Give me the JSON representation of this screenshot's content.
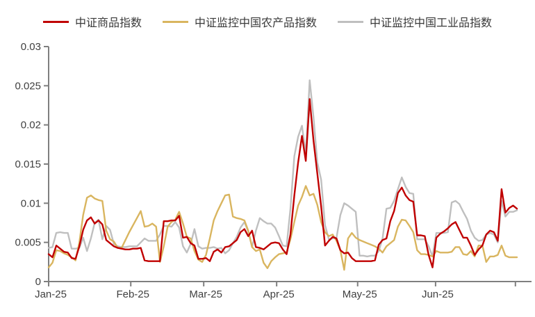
{
  "legend": [
    {
      "label": "中证商品指数",
      "color": "#C00000"
    },
    {
      "label": "中证监控中国农产品指数",
      "color": "#D9B55F"
    },
    {
      "label": "中证监控中国工业品指数",
      "color": "#BFBFBF"
    }
  ],
  "colors": {
    "axis": "#7F7F7F",
    "tick_text": "#404040",
    "background": "#FFFFFF"
  },
  "chart_data": {
    "type": "line",
    "title": "",
    "xlabel": "",
    "ylabel": "",
    "ylim": [
      0,
      0.03
    ],
    "grid": false,
    "legend_position": "top",
    "y_ticks": [
      0,
      0.005,
      0.01,
      0.015,
      0.02,
      0.025,
      0.03
    ],
    "y_tick_labels": [
      "0",
      "0.005",
      "0.01",
      "0.015",
      "0.02",
      "0.025",
      "0.03"
    ],
    "x_ticks": [
      {
        "day": 0,
        "label": "Jan-25"
      },
      {
        "day": 21.4,
        "label": "Feb-25"
      },
      {
        "day": 40.4,
        "label": "Mar-25"
      },
      {
        "day": 59.4,
        "label": "Apr-25"
      },
      {
        "day": 80.5,
        "label": "May-25"
      },
      {
        "day": 100.8,
        "label": "Jun-25"
      },
      {
        "day": 121.6,
        "label": ""
      }
    ],
    "series": [
      {
        "name": "中证商品指数",
        "color": "#C00000",
        "values": [
          0.0035,
          0.0031,
          0.0046,
          0.0042,
          0.0038,
          0.0037,
          0.003,
          0.0029,
          0.0045,
          0.0066,
          0.0078,
          0.0082,
          0.0074,
          0.0078,
          0.0073,
          0.0053,
          0.0049,
          0.0045,
          0.0043,
          0.0042,
          0.0041,
          0.0041,
          0.0042,
          0.0042,
          0.0043,
          0.0027,
          0.0026,
          0.0026,
          0.0026,
          0.0026,
          0.0077,
          0.0077,
          0.0078,
          0.0078,
          0.0084,
          0.0056,
          0.0057,
          0.0049,
          0.0046,
          0.0029,
          0.0029,
          0.003,
          0.0026,
          0.0038,
          0.0041,
          0.0037,
          0.0044,
          0.0045,
          0.0049,
          0.0053,
          0.0063,
          0.0067,
          0.0058,
          0.0065,
          0.0044,
          0.0043,
          0.0041,
          0.0045,
          0.0049,
          0.005,
          0.0049,
          0.0041,
          0.0035,
          0.006,
          0.011,
          0.0152,
          0.0186,
          0.0154,
          0.0233,
          0.018,
          0.0138,
          0.0096,
          0.0046,
          0.0052,
          0.0057,
          0.0055,
          0.004,
          0.0036,
          0.0037,
          0.003,
          0.0026,
          0.0026,
          0.0026,
          0.0026,
          0.0026,
          0.0027,
          0.0047,
          0.0053,
          0.0055,
          0.0077,
          0.009,
          0.0113,
          0.012,
          0.011,
          0.0104,
          0.0102,
          0.0059,
          0.0059,
          0.0058,
          0.0034,
          0.0018,
          0.0056,
          0.0061,
          0.0064,
          0.0068,
          0.0073,
          0.0076,
          0.0066,
          0.0056,
          0.0056,
          0.0046,
          0.0034,
          0.0041,
          0.0046,
          0.006,
          0.0065,
          0.0063,
          0.0052,
          0.0118,
          0.0088,
          0.0094,
          0.0097,
          0.0093
        ]
      },
      {
        "name": "中证监控中国农产品指数",
        "color": "#D9B55F",
        "values": [
          0.0018,
          0.0024,
          0.004,
          0.0039,
          0.0036,
          0.0034,
          0.0031,
          0.0027,
          0.005,
          0.0085,
          0.0107,
          0.011,
          0.0106,
          0.0104,
          0.0103,
          0.0065,
          0.0054,
          0.0051,
          0.0043,
          0.0043,
          0.0053,
          0.0063,
          0.0072,
          0.0081,
          0.009,
          0.007,
          0.0071,
          0.0074,
          0.007,
          0.0025,
          0.0045,
          0.007,
          0.0076,
          0.0079,
          0.0089,
          0.0074,
          0.0057,
          0.0055,
          0.0039,
          0.0028,
          0.0025,
          0.0034,
          0.0055,
          0.0078,
          0.009,
          0.01,
          0.011,
          0.0111,
          0.0083,
          0.0081,
          0.008,
          0.0078,
          0.0065,
          0.0044,
          0.0039,
          0.0041,
          0.0024,
          0.0017,
          0.0026,
          0.0031,
          0.0035,
          0.0036,
          0.0037,
          0.0054,
          0.0076,
          0.0097,
          0.0108,
          0.0122,
          0.011,
          0.0112,
          0.0098,
          0.0076,
          0.0063,
          0.0058,
          0.006,
          0.0052,
          0.004,
          0.0015,
          0.0055,
          0.0062,
          0.0056,
          0.0053,
          0.0051,
          0.0049,
          0.0047,
          0.0045,
          0.0042,
          0.0037,
          0.0045,
          0.0049,
          0.0053,
          0.007,
          0.0079,
          0.0078,
          0.0071,
          0.0063,
          0.004,
          0.0035,
          0.0035,
          0.0034,
          0.0032,
          0.0039,
          0.0037,
          0.0037,
          0.0037,
          0.0038,
          0.0044,
          0.0044,
          0.0035,
          0.0034,
          0.0039,
          0.0032,
          0.0046,
          0.0046,
          0.0025,
          0.0032,
          0.0032,
          0.0034,
          0.0046,
          0.0033,
          0.0031,
          0.0031,
          0.0031
        ]
      },
      {
        "name": "中证监控中国工业品指数",
        "color": "#BFBFBF",
        "values": [
          0.0043,
          0.0044,
          0.0062,
          0.0063,
          0.0062,
          0.0062,
          0.0042,
          0.0042,
          0.0043,
          0.0056,
          0.0039,
          0.0055,
          0.0075,
          0.0079,
          0.0054,
          0.0071,
          0.0066,
          0.0048,
          0.0045,
          0.0044,
          0.0044,
          0.0045,
          0.0045,
          0.0045,
          0.005,
          0.0055,
          0.0052,
          0.0052,
          0.0052,
          0.006,
          0.0071,
          0.0071,
          0.007,
          0.0076,
          0.0069,
          0.0045,
          0.0037,
          0.0048,
          0.0067,
          0.0045,
          0.0042,
          0.0043,
          0.0043,
          0.0044,
          0.0042,
          0.0043,
          0.0036,
          0.004,
          0.0049,
          0.0057,
          0.0069,
          0.0076,
          0.0064,
          0.0044,
          0.0065,
          0.0081,
          0.0077,
          0.0074,
          0.0074,
          0.0069,
          0.0058,
          0.0046,
          0.0045,
          0.0093,
          0.016,
          0.0185,
          0.0199,
          0.0162,
          0.0257,
          0.021,
          0.0152,
          0.013,
          0.0072,
          0.0054,
          0.0055,
          0.0056,
          0.0085,
          0.01,
          0.0097,
          0.0093,
          0.0089,
          0.0033,
          0.0033,
          0.0032,
          0.0033,
          0.0033,
          0.0039,
          0.0055,
          0.0093,
          0.0094,
          0.0103,
          0.0118,
          0.0133,
          0.0121,
          0.0113,
          0.0112,
          0.0054,
          0.0054,
          0.0054,
          0.0045,
          0.0032,
          0.0062,
          0.0062,
          0.0062,
          0.0063,
          0.0101,
          0.0103,
          0.0099,
          0.0089,
          0.008,
          0.0065,
          0.0056,
          0.0052,
          0.0053,
          0.006,
          0.0062,
          0.006,
          0.005,
          0.0103,
          0.0083,
          0.0089,
          0.0089,
          0.0091
        ]
      }
    ]
  }
}
